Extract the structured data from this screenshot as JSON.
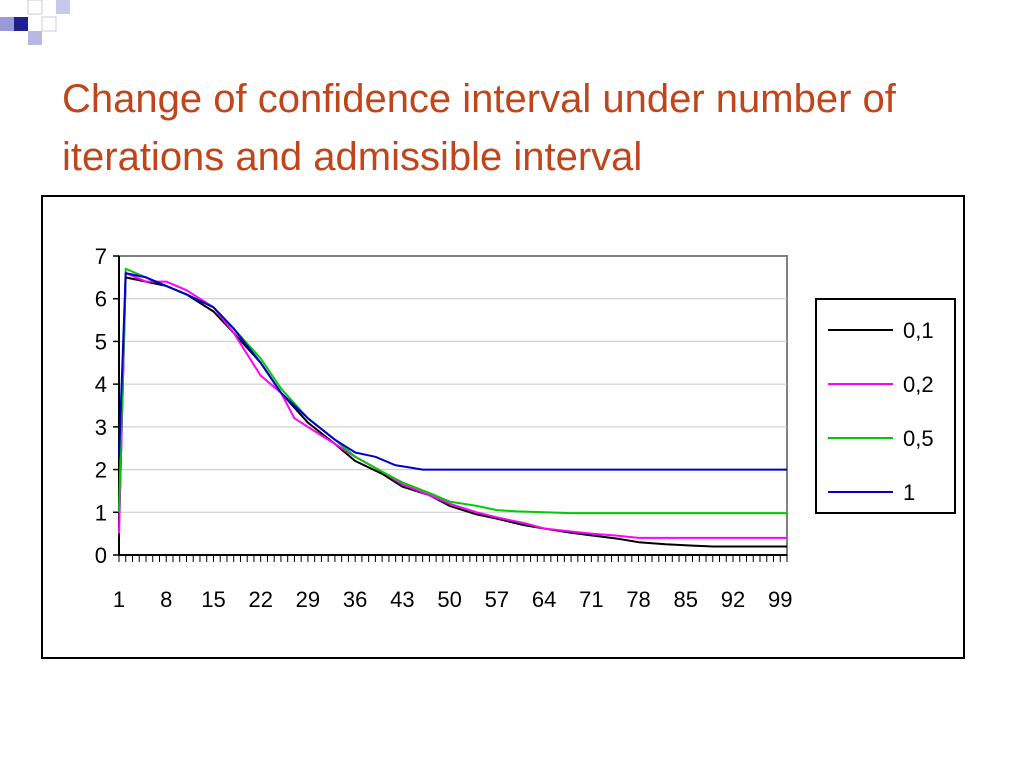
{
  "slide": {
    "title": "Change of confidence interval under number of iterations and admissible interval",
    "accent_color": "#c0451a",
    "decor_color": "#1f1f8f"
  },
  "chart_data": {
    "type": "line",
    "title": "",
    "xlabel": "",
    "ylabel": "",
    "ylim": [
      0,
      7
    ],
    "yticks": [
      0,
      1,
      2,
      3,
      4,
      5,
      6,
      7
    ],
    "xlim": [
      1,
      100
    ],
    "xtick_labels": [
      "1",
      "8",
      "15",
      "22",
      "29",
      "36",
      "43",
      "50",
      "57",
      "64",
      "71",
      "78",
      "85",
      "92",
      "99"
    ],
    "xtick_values": [
      1,
      8,
      15,
      22,
      29,
      36,
      43,
      50,
      57,
      64,
      71,
      78,
      85,
      92,
      99
    ],
    "grid": true,
    "legend_placement": "right",
    "series": [
      {
        "name": "0,1",
        "color": "#000000",
        "points": [
          [
            1,
            0.6
          ],
          [
            2,
            6.5
          ],
          [
            5,
            6.4
          ],
          [
            8,
            6.3
          ],
          [
            11,
            6.1
          ],
          [
            15,
            5.7
          ],
          [
            18,
            5.2
          ],
          [
            22,
            4.5
          ],
          [
            25,
            3.8
          ],
          [
            29,
            3.1
          ],
          [
            33,
            2.6
          ],
          [
            36,
            2.2
          ],
          [
            40,
            1.9
          ],
          [
            43,
            1.6
          ],
          [
            47,
            1.4
          ],
          [
            50,
            1.15
          ],
          [
            54,
            0.95
          ],
          [
            57,
            0.85
          ],
          [
            61,
            0.7
          ],
          [
            64,
            0.62
          ],
          [
            68,
            0.52
          ],
          [
            71,
            0.46
          ],
          [
            75,
            0.38
          ],
          [
            78,
            0.3
          ],
          [
            82,
            0.25
          ],
          [
            86,
            0.22
          ],
          [
            89,
            0.2
          ],
          [
            100,
            0.2
          ]
        ]
      },
      {
        "name": "0,2",
        "color": "#ff00ff",
        "points": [
          [
            1,
            0.5
          ],
          [
            2,
            6.6
          ],
          [
            5,
            6.4
          ],
          [
            8,
            6.4
          ],
          [
            11,
            6.2
          ],
          [
            14,
            5.9
          ],
          [
            15,
            5.8
          ],
          [
            18,
            5.2
          ],
          [
            22,
            4.2
          ],
          [
            25,
            3.8
          ],
          [
            27,
            3.2
          ],
          [
            29,
            3.0
          ],
          [
            33,
            2.6
          ],
          [
            36,
            2.3
          ],
          [
            40,
            1.95
          ],
          [
            43,
            1.65
          ],
          [
            47,
            1.4
          ],
          [
            50,
            1.2
          ],
          [
            54,
            1.0
          ],
          [
            57,
            0.88
          ],
          [
            61,
            0.75
          ],
          [
            64,
            0.62
          ],
          [
            68,
            0.55
          ],
          [
            71,
            0.5
          ],
          [
            75,
            0.45
          ],
          [
            78,
            0.4
          ],
          [
            85,
            0.4
          ],
          [
            100,
            0.4
          ]
        ]
      },
      {
        "name": "0,5",
        "color": "#00cc00",
        "points": [
          [
            1,
            1.0
          ],
          [
            2,
            6.7
          ],
          [
            5,
            6.5
          ],
          [
            8,
            6.3
          ],
          [
            11,
            6.1
          ],
          [
            15,
            5.8
          ],
          [
            18,
            5.3
          ],
          [
            22,
            4.6
          ],
          [
            25,
            3.9
          ],
          [
            29,
            3.2
          ],
          [
            33,
            2.7
          ],
          [
            36,
            2.3
          ],
          [
            40,
            1.95
          ],
          [
            43,
            1.7
          ],
          [
            47,
            1.45
          ],
          [
            50,
            1.25
          ],
          [
            54,
            1.15
          ],
          [
            57,
            1.05
          ],
          [
            60,
            1.02
          ],
          [
            64,
            1.0
          ],
          [
            68,
            0.98
          ],
          [
            75,
            0.98
          ],
          [
            100,
            0.98
          ]
        ]
      },
      {
        "name": "1",
        "color": "#0000cc",
        "points": [
          [
            1,
            2.3
          ],
          [
            2,
            6.6
          ],
          [
            5,
            6.5
          ],
          [
            8,
            6.3
          ],
          [
            11,
            6.1
          ],
          [
            15,
            5.8
          ],
          [
            18,
            5.3
          ],
          [
            22,
            4.5
          ],
          [
            25,
            3.8
          ],
          [
            29,
            3.2
          ],
          [
            33,
            2.7
          ],
          [
            36,
            2.4
          ],
          [
            39,
            2.3
          ],
          [
            42,
            2.1
          ],
          [
            44,
            2.05
          ],
          [
            46,
            2.0
          ],
          [
            60,
            2.0
          ],
          [
            100,
            2.0
          ]
        ]
      }
    ]
  }
}
